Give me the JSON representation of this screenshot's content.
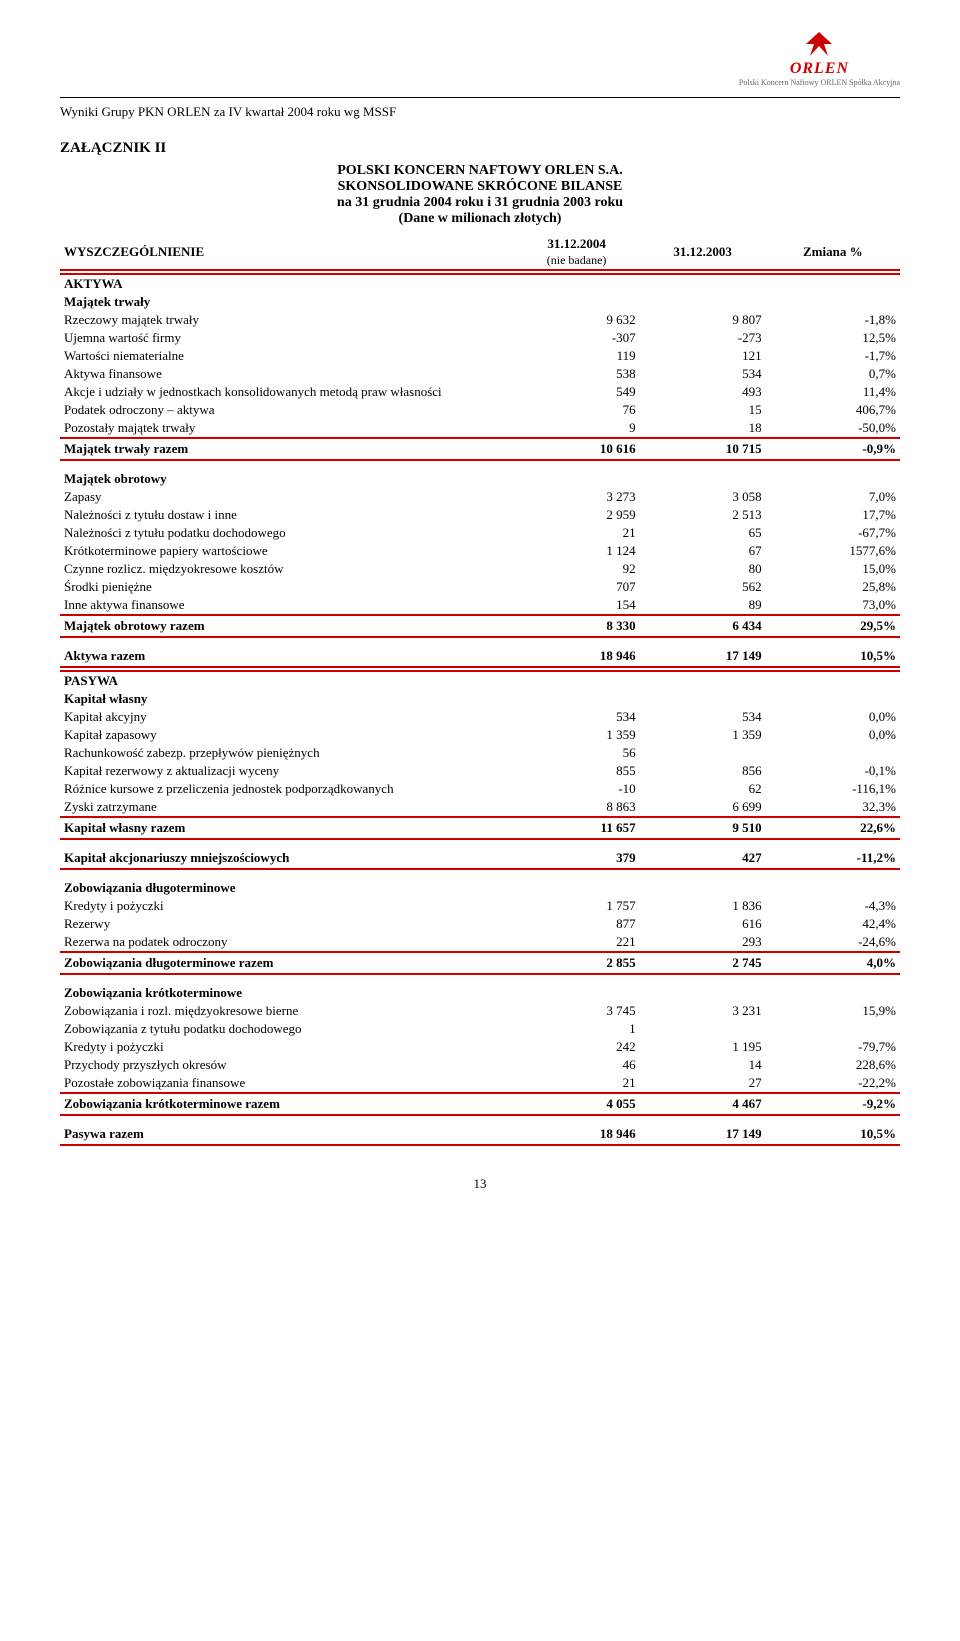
{
  "logo": {
    "brand": "ORLEN",
    "sub": "Polski Koncern Naftowy ORLEN\nSpółka Akcyjna"
  },
  "header": "Wyniki Grupy PKN ORLEN za IV kwartał 2004 roku wg MSSF",
  "attachment": "ZAŁĄCZNIK II",
  "title1": "POLSKI KONCERN NAFTOWY ORLEN S.A.",
  "title2": "SKONSOLIDOWANE SKRÓCONE BILANSE",
  "title3": "na 31 grudnia 2004 roku i 31 grudnia 2003 roku",
  "title4": "(Dane w milionach złotych)",
  "cols": {
    "label": "WYSZCZEGÓLNIENIE",
    "c1a": "31.12.2004",
    "c1b": "(nie badane)",
    "c2": "31.12.2003",
    "c3": "Zmiana %"
  },
  "page": "13",
  "colors": {
    "accent": "#c00",
    "text": "#000",
    "bg": "#fff"
  },
  "sections": [
    {
      "title": "AKTYWA",
      "groups": [
        {
          "title": "Majątek trwały",
          "rows": [
            [
              "Rzeczowy majątek trwały",
              "9 632",
              "9 807",
              "-1,8%"
            ],
            [
              "Ujemna wartość firmy",
              "-307",
              "-273",
              "12,5%"
            ],
            [
              "Wartości niematerialne",
              "119",
              "121",
              "-1,7%"
            ],
            [
              "Aktywa finansowe",
              "538",
              "534",
              "0,7%"
            ],
            [
              "Akcje i udziały w jednostkach konsolidowanych metodą praw własności",
              "549",
              "493",
              "11,4%"
            ],
            [
              "Podatek odroczony – aktywa",
              "76",
              "15",
              "406,7%"
            ],
            [
              "Pozostały majątek trwały",
              "9",
              "18",
              "-50,0%"
            ]
          ],
          "total": [
            "Majątek trwały razem",
            "10 616",
            "10 715",
            "-0,9%"
          ]
        },
        {
          "title": "Majątek obrotowy",
          "rows": [
            [
              "Zapasy",
              "3 273",
              "3 058",
              "7,0%"
            ],
            [
              "Należności z tytułu dostaw i inne",
              "2 959",
              "2 513",
              "17,7%"
            ],
            [
              "Należności z tytułu podatku dochodowego",
              "21",
              "65",
              "-67,7%"
            ],
            [
              "Krótkoterminowe papiery wartościowe",
              "1 124",
              "67",
              "1577,6%"
            ],
            [
              "Czynne rozlicz. międzyokresowe kosztów",
              "92",
              "80",
              "15,0%"
            ],
            [
              "Środki pieniężne",
              "707",
              "562",
              "25,8%"
            ],
            [
              "Inne aktywa finansowe",
              "154",
              "89",
              "73,0%"
            ]
          ],
          "total": [
            "Majątek obrotowy razem",
            "8 330",
            "6 434",
            "29,5%"
          ]
        }
      ],
      "grand": [
        "Aktywa razem",
        "18 946",
        "17 149",
        "10,5%"
      ]
    },
    {
      "title": "PASYWA",
      "groups": [
        {
          "title": "Kapitał własny",
          "rows": [
            [
              "Kapitał akcyjny",
              "534",
              "534",
              "0,0%"
            ],
            [
              "Kapitał zapasowy",
              "1 359",
              "1 359",
              "0,0%"
            ],
            [
              "Rachunkowość zabezp. przepływów pieniężnych",
              "56",
              "",
              ""
            ],
            [
              "Kapitał rezerwowy z aktualizacji wyceny",
              "855",
              "856",
              "-0,1%"
            ],
            [
              "Różnice kursowe z przeliczenia jednostek podporządkowanych",
              "-10",
              "62",
              "-116,1%"
            ],
            [
              "Zyski zatrzymane",
              "8 863",
              "6 699",
              "32,3%"
            ]
          ],
          "total": [
            "Kapitał własny razem",
            "11 657",
            "9 510",
            "22,6%"
          ]
        }
      ],
      "standalone": [
        "Kapitał akcjonariuszy mniejszościowych",
        "379",
        "427",
        "-11,2%"
      ],
      "groups2": [
        {
          "title": "Zobowiązania długoterminowe",
          "rows": [
            [
              "Kredyty i pożyczki",
              "1 757",
              "1 836",
              "-4,3%"
            ],
            [
              "Rezerwy",
              "877",
              "616",
              "42,4%"
            ],
            [
              "Rezerwa na podatek odroczony",
              "221",
              "293",
              "-24,6%"
            ]
          ],
          "total": [
            "Zobowiązania długoterminowe razem",
            "2 855",
            "2 745",
            "4,0%"
          ]
        },
        {
          "title": "Zobowiązania krótkoterminowe",
          "rows": [
            [
              "Zobowiązania i rozl. międzyokresowe bierne",
              "3 745",
              "3 231",
              "15,9%"
            ],
            [
              "Zobowiązania z tytułu podatku dochodowego",
              "1",
              "",
              ""
            ],
            [
              "Kredyty i pożyczki",
              "242",
              "1 195",
              "-79,7%"
            ],
            [
              "Przychody przyszłych okresów",
              "46",
              "14",
              "228,6%"
            ],
            [
              "Pozostałe zobowiązania finansowe",
              "21",
              "27",
              "-22,2%"
            ]
          ],
          "total": [
            "Zobowiązania krótkoterminowe razem",
            "4 055",
            "4 467",
            "-9,2%"
          ]
        }
      ],
      "grand": [
        "Pasywa razem",
        "18 946",
        "17 149",
        "10,5%"
      ]
    }
  ]
}
